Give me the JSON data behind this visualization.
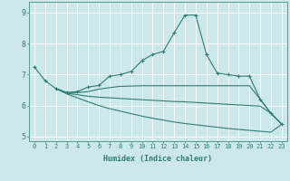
{
  "xlabel": "Humidex (Indice chaleur)",
  "ylabel": "",
  "xlim": [
    -0.5,
    23.5
  ],
  "ylim": [
    4.85,
    9.35
  ],
  "yticks": [
    5,
    6,
    7,
    8,
    9
  ],
  "xticks": [
    0,
    1,
    2,
    3,
    4,
    5,
    6,
    7,
    8,
    9,
    10,
    11,
    12,
    13,
    14,
    15,
    16,
    17,
    18,
    19,
    20,
    21,
    22,
    23
  ],
  "bg_color": "#cce8ea",
  "grid_color": "#b0d8dc",
  "line_color": "#2e7d72",
  "lines": [
    {
      "x": [
        0,
        1,
        2,
        3,
        4,
        5,
        6,
        7,
        8,
        9,
        10,
        11,
        12,
        13,
        14,
        15,
        16,
        17,
        18,
        19,
        20,
        21,
        22,
        23
      ],
      "y": [
        7.25,
        6.8,
        6.55,
        6.42,
        6.45,
        6.6,
        6.65,
        6.95,
        7.0,
        7.1,
        7.45,
        7.65,
        7.75,
        8.35,
        8.92,
        8.92,
        7.65,
        7.05,
        7.0,
        6.95,
        6.95,
        6.2,
        5.75,
        5.4
      ],
      "marker": true
    },
    {
      "x": [
        2,
        3,
        4,
        5,
        6,
        7,
        8,
        9,
        10,
        11,
        12,
        13,
        14,
        15,
        16,
        17,
        18,
        19,
        20,
        21,
        22,
        23
      ],
      "y": [
        6.55,
        6.42,
        6.42,
        6.45,
        6.53,
        6.58,
        6.62,
        6.63,
        6.64,
        6.64,
        6.64,
        6.64,
        6.64,
        6.64,
        6.64,
        6.64,
        6.64,
        6.64,
        6.64,
        6.2,
        5.75,
        5.4
      ],
      "marker": false
    },
    {
      "x": [
        2,
        3,
        4,
        5,
        6,
        7,
        8,
        9,
        10,
        11,
        12,
        13,
        14,
        15,
        16,
        17,
        18,
        19,
        20,
        21,
        22,
        23
      ],
      "y": [
        6.55,
        6.4,
        6.35,
        6.3,
        6.27,
        6.25,
        6.23,
        6.21,
        6.19,
        6.17,
        6.15,
        6.13,
        6.12,
        6.1,
        6.08,
        6.06,
        6.04,
        6.02,
        6.0,
        5.98,
        5.75,
        5.4
      ],
      "marker": false
    },
    {
      "x": [
        2,
        3,
        4,
        5,
        6,
        7,
        8,
        9,
        10,
        11,
        12,
        13,
        14,
        15,
        16,
        17,
        18,
        19,
        20,
        21,
        22,
        23
      ],
      "y": [
        6.55,
        6.38,
        6.25,
        6.12,
        6.0,
        5.9,
        5.82,
        5.74,
        5.66,
        5.59,
        5.53,
        5.47,
        5.42,
        5.38,
        5.34,
        5.3,
        5.26,
        5.23,
        5.2,
        5.17,
        5.14,
        5.4
      ],
      "marker": false
    }
  ]
}
